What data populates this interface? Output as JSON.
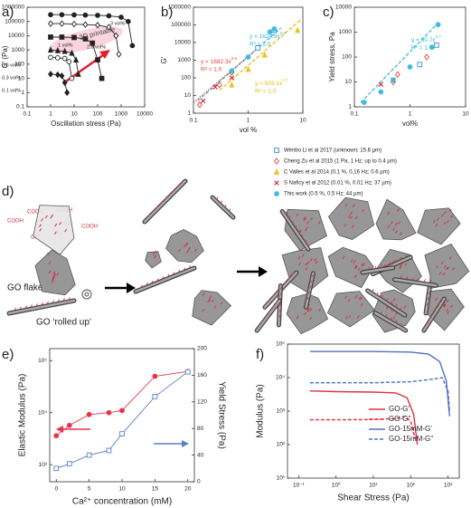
{
  "chart_data": [
    {
      "type": "line",
      "label": "a)",
      "xlabel": "Oscillation stress (Pa)",
      "ylabel": "G' (Pa)",
      "xscale": "log",
      "yscale": "log",
      "xlim": [
        0.1,
        10000
      ],
      "ylim": [
        0.1,
        1000000
      ],
      "xticks": [
        0.1,
        1,
        10,
        100,
        1000,
        10000
      ],
      "yticks": [
        0.1,
        1,
        10,
        100,
        1000,
        10000,
        100000,
        1000000
      ],
      "legend": "inline",
      "annotations": [
        {
          "text": "3D printable",
          "color": "#444444"
        }
      ],
      "series": [
        {
          "name": "3 vol%",
          "color": "#222222",
          "marker": "circle",
          "filled": true,
          "x": [
            1,
            3,
            10,
            30,
            100,
            300,
            1000,
            2000,
            3000
          ],
          "values": [
            300000,
            300000,
            290000,
            280000,
            270000,
            250000,
            200000,
            100000,
            2000
          ]
        },
        {
          "name": "2.5 vol%",
          "color": "#222222",
          "marker": "diamond",
          "filled": false,
          "x": [
            1,
            3,
            10,
            30,
            100,
            300,
            600,
            800
          ],
          "values": [
            70000,
            70000,
            65000,
            60000,
            55000,
            40000,
            10000,
            500
          ]
        },
        {
          "name": "1 vol%",
          "color": "#222222",
          "marker": "square",
          "filled": true,
          "x": [
            1,
            3,
            10,
            30,
            60,
            100,
            150
          ],
          "values": [
            8000,
            8000,
            7500,
            6000,
            3000,
            200,
            10
          ]
        },
        {
          "name": "0.6 vol%",
          "color": "#222222",
          "marker": "triangle",
          "filled": true,
          "x": [
            1,
            2,
            4,
            8,
            12,
            15
          ],
          "values": [
            1000,
            900,
            800,
            600,
            200,
            20
          ]
        },
        {
          "name": "0.3 vol%",
          "color": "#222222",
          "marker": "circle",
          "filled": false,
          "x": [
            1,
            2,
            4,
            6,
            8
          ],
          "values": [
            300,
            280,
            250,
            150,
            10
          ]
        },
        {
          "name": "0.1 vol%",
          "color": "#222222",
          "marker": "diamond",
          "filled": true,
          "x": [
            1,
            2,
            3,
            4,
            5
          ],
          "values": [
            20,
            18,
            15,
            5,
            1
          ]
        }
      ]
    },
    {
      "type": "scatter",
      "label": "b)",
      "xlabel": "vol %",
      "ylabel": "G'",
      "xscale": "log",
      "yscale": "log",
      "xlim": [
        0.1,
        10
      ],
      "ylim": [
        1,
        1000000
      ],
      "xticks": [
        0.1,
        1,
        10
      ],
      "yticks": [
        1,
        10,
        100,
        1000,
        10000,
        100000,
        1000000
      ],
      "legend": "external",
      "annotations": [
        {
          "text": "y = 1624.6x",
          "sup": "2.7",
          "r2": "R² = 1.0",
          "color": "#2bb6d9"
        },
        {
          "text": "y = 1682.3x",
          "sup": "2.6",
          "r2": "R² = 1.0",
          "color": "#e0463c"
        },
        {
          "text": "y = 503.1x",
          "sup": "2.7",
          "r2": "R² = 1.0",
          "color": "#e5b800"
        }
      ],
      "fit_lines": [
        {
          "color": "#2bb6d9",
          "dash": "dashed",
          "x": [
            0.12,
            4
          ],
          "values": [
            5,
            68600
          ]
        },
        {
          "color": "#e0463c",
          "dash": "dotted",
          "x": [
            0.1,
            1.5
          ],
          "values": [
            4,
            4800
          ]
        },
        {
          "color": "#e5b800",
          "dash": "dashed",
          "x": [
            0.3,
            9
          ],
          "values": [
            20,
            190000
          ]
        }
      ],
      "series": [
        {
          "name": "Wenbo Li et al 2017 (unknown; 15.6 µm)",
          "color": "#3a8ec9",
          "marker": "square",
          "filled": false,
          "x": [
            1.5,
            3
          ],
          "values": [
            5000,
            50000
          ]
        },
        {
          "name": "Cheng Zu et al 2015 (1 Pa, 1 Hz; up to 0.4 µm)",
          "color": "#e0463c",
          "marker": "diamond",
          "filled": false,
          "x": [
            0.13,
            0.3,
            0.5
          ],
          "values": [
            3,
            40,
            200
          ]
        },
        {
          "name": "C Valles et al 2014 (0.1 %, 0.16 Hz; 0.6 µm)",
          "color": "#f0c020",
          "marker": "triangle",
          "filled": true,
          "x": [
            0.5,
            1,
            2,
            8
          ],
          "values": [
            40,
            300,
            2000,
            50000
          ]
        },
        {
          "name": "S Naficy et al 2012 (0.01 %, 0.01 Hz; 37 µm)",
          "color": "#d4232f",
          "marker": "x",
          "filled": false,
          "x": [
            0.15,
            0.25,
            0.5
          ],
          "values": [
            5,
            30,
            100
          ]
        },
        {
          "name": "This work (0.5 %, 0.5 Hz; 44 µm)",
          "color": "#3cbde0",
          "marker": "circle",
          "filled": true,
          "x": [
            0.5,
            1,
            2.5,
            3
          ],
          "values": [
            250,
            1500,
            40000,
            60000
          ]
        }
      ]
    },
    {
      "type": "scatter",
      "label": "c)",
      "xlabel": "vol%",
      "ylabel": "Yield stress, Pa",
      "xscale": "log",
      "yscale": "log",
      "xlim": [
        0.1,
        10
      ],
      "ylim": [
        1,
        10000
      ],
      "xticks": [
        0.1,
        1,
        10
      ],
      "yticks": [
        1,
        10,
        100,
        1000,
        10000
      ],
      "annotations": [
        {
          "text": "y = 60.7x",
          "sup": "2.7",
          "r2": "R² = 1.0",
          "color": "#2bb6d9"
        }
      ],
      "fit_lines": [
        {
          "color": "#2bb6d9",
          "dash": "dashed",
          "x": [
            0.13,
            3.3
          ],
          "values": [
            1.5,
            2500
          ]
        }
      ],
      "series": [
        {
          "color": "#3a8ec9",
          "marker": "square",
          "filled": false,
          "x": [
            1.5,
            3
          ],
          "values": [
            50,
            300
          ]
        },
        {
          "color": "#e0463c",
          "marker": "diamond",
          "filled": false,
          "x": [
            0.5,
            0.6,
            2
          ],
          "values": [
            10,
            20,
            100
          ]
        },
        {
          "color": "#d4232f",
          "marker": "x",
          "filled": false,
          "x": [
            0.3,
            0.5
          ],
          "values": [
            8,
            12
          ]
        },
        {
          "color": "#3cbde0",
          "marker": "circle",
          "filled": true,
          "x": [
            0.15,
            0.3,
            0.5,
            1,
            2.5,
            3.2
          ],
          "values": [
            1.5,
            4,
            12,
            40,
            250,
            2000
          ]
        }
      ]
    },
    {
      "type": "line",
      "label": "e)",
      "xlabel": "Ca²⁺ concentration (mM)",
      "ylabel": "Elastic Modulus (Pa)",
      "y2label": "Yield Stress (Pa)",
      "yscale": "log",
      "x": [
        0,
        2,
        5,
        8,
        10,
        15,
        20
      ],
      "xlim": [
        -1,
        21
      ],
      "xticks": [
        0,
        5,
        10,
        15,
        20
      ],
      "ylim": [
        470,
        170000
      ],
      "yticks": [
        {
          "value": 1000,
          "label": "10³"
        },
        {
          "value": 10000,
          "label": "10⁴"
        },
        {
          "value": 100000,
          "label": "10⁵"
        }
      ],
      "y2lim": [
        0,
        200
      ],
      "y2ticks": [
        0,
        40,
        80,
        120,
        160,
        200
      ],
      "series": [
        {
          "color": "#e8334a",
          "marker": "circle",
          "filled": true,
          "values": [
            3600,
            5700,
            9200,
            10000,
            11000,
            50000,
            62000
          ]
        },
        {
          "color": "#5a7fc6",
          "marker": "square",
          "filled": false,
          "axis": "y2",
          "values": [
            20,
            27,
            40,
            47,
            72,
            128,
            165
          ]
        }
      ]
    },
    {
      "type": "line",
      "label": "f)",
      "xlabel": "Shear Stress (Pa)",
      "ylabel": "Modulus (Pa)",
      "xscale": "log",
      "yscale": "log",
      "xlim": [
        0.05,
        2000
      ],
      "ylim": [
        10,
        100000
      ],
      "xticks": [
        {
          "value": 0.1,
          "label": "10⁻¹"
        },
        {
          "value": 1,
          "label": "10⁰"
        },
        {
          "value": 10,
          "label": "10¹"
        },
        {
          "value": 100,
          "label": "10²"
        },
        {
          "value": 1000,
          "label": "10³"
        }
      ],
      "yticks": [
        {
          "value": 10,
          "label": "10¹"
        },
        {
          "value": 100,
          "label": "10²"
        },
        {
          "value": 1000,
          "label": "10³"
        },
        {
          "value": 10000,
          "label": "10⁴"
        },
        {
          "value": 100000,
          "label": "10⁵"
        }
      ],
      "legend": "upper right",
      "series": [
        {
          "name": "GO-G'",
          "color": "#e03040",
          "x": [
            0.2,
            1,
            10,
            40,
            80,
            120,
            150
          ],
          "values": [
            4000,
            3800,
            3700,
            3500,
            2500,
            800,
            100
          ]
        },
        {
          "name": "GO-G''",
          "color": "#e03040",
          "dash": "dashed",
          "x": [
            0.2,
            1,
            10,
            40,
            70,
            100,
            130
          ],
          "values": [
            550,
            550,
            560,
            600,
            700,
            500,
            150
          ]
        },
        {
          "name": "GO-15mM-G'",
          "color": "#5070c0",
          "x": [
            0.2,
            1,
            10,
            100,
            300,
            600,
            900,
            1100
          ],
          "values": [
            60000,
            60000,
            60000,
            58000,
            50000,
            30000,
            8000,
            700
          ]
        },
        {
          "name": "GO-15mM-G''",
          "color": "#5070c0",
          "dash": "dashed",
          "x": [
            0.2,
            1,
            10,
            100,
            400,
            700,
            1000,
            1100
          ],
          "values": [
            7000,
            7000,
            7000,
            7500,
            9000,
            10000,
            4000,
            1000
          ]
        }
      ]
    }
  ],
  "diagram": {
    "label": "d)",
    "chemistry": [
      "COOH",
      "COOH",
      "COOH",
      "COOH",
      "OH",
      "OH",
      "OH"
    ],
    "flake_label": "GO flake",
    "rolled_label": "GO ‘rolled up’"
  }
}
